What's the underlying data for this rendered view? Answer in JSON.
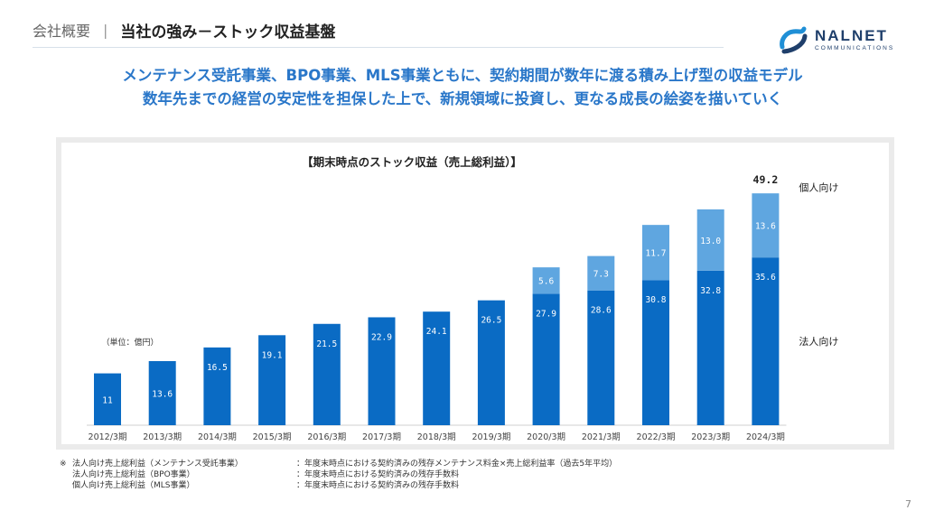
{
  "header": {
    "section": "会社概要",
    "separator": "|",
    "title": "当社の強み－ストック収益基盤"
  },
  "logo": {
    "name": "NALNET",
    "sub": "COMMUNICATIONS",
    "color": "#1f3f6b",
    "icon": "nalnet-logo-icon"
  },
  "headline": {
    "line1": "メンテナンス受託事業、BPO事業、MLS事業ともに、契約期間が数年に渡る積み上げ型の収益モデル",
    "line2": "数年先までの経営の安定性を担保した上で、新規領域に投資し、更なる成長の絵姿を描いていく"
  },
  "chart_data": {
    "type": "bar",
    "stacked": true,
    "title": "【期末時点のストック収益（売上総利益）】",
    "unit": "（単位：億円）",
    "categories": [
      "2012/3期",
      "2013/3期",
      "2014/3期",
      "2015/3期",
      "2016/3期",
      "2017/3期",
      "2018/3期",
      "2019/3期",
      "2020/3期",
      "2021/3期",
      "2022/3期",
      "2023/3期",
      "2024/3期"
    ],
    "series": [
      {
        "name": "法人向け",
        "color": "#0a6bc4",
        "label_color": "#ffffff",
        "values": [
          11,
          13.6,
          16.5,
          19.1,
          21.5,
          22.9,
          24.1,
          26.5,
          27.9,
          28.6,
          30.8,
          32.8,
          35.6
        ],
        "labels": [
          "11",
          "13.6",
          "16.5",
          "19.1",
          "21.5",
          "22.9",
          "24.1",
          "26.5",
          "27.9",
          "28.6",
          "30.8",
          "32.8",
          "35.6"
        ]
      },
      {
        "name": "個人向け",
        "color": "#5fa6e0",
        "label_color": "#ffffff",
        "values": [
          null,
          null,
          null,
          null,
          null,
          null,
          null,
          null,
          5.6,
          7.3,
          11.7,
          13.0,
          13.6
        ],
        "labels": [
          "",
          "",
          "",
          "",
          "",
          "",
          "",
          "",
          "5.6",
          "7.3",
          "11.7",
          "13.0",
          "13.6"
        ]
      }
    ],
    "total_label": {
      "index": 12,
      "text": "49.2"
    },
    "ylim": [
      0,
      50
    ],
    "grid": false,
    "legend": "right"
  },
  "footnote": {
    "mark": "※",
    "rows": [
      {
        "label": "法人向け売上総利益（メンテナンス受託事業）",
        "desc": "：年度末時点における契約済みの残存メンテナンス料金×売上総利益率（過去5年平均）"
      },
      {
        "label": "法人向け売上総利益（BPO事業）",
        "desc": "：年度末時点における契約済みの残存手数料"
      },
      {
        "label": "個人向け売上総利益（MLS事業）",
        "desc": "：年度末時点における契約済みの残存手数料"
      }
    ]
  },
  "page_number": "7"
}
